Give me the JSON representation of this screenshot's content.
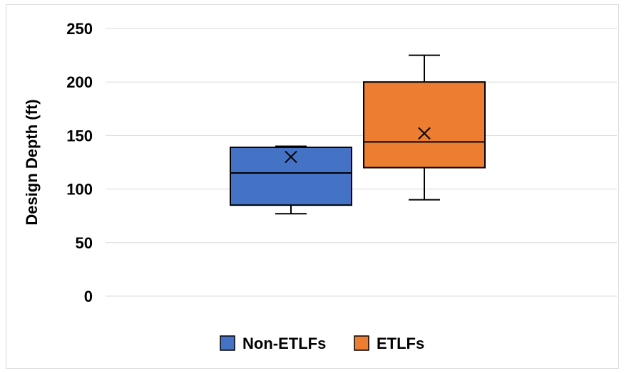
{
  "chart_data": {
    "type": "box",
    "title": "",
    "xlabel": "",
    "ylabel": "Design Depth (ft)",
    "ylim": [
      0,
      250
    ],
    "yticks": [
      0,
      50,
      100,
      150,
      200,
      250
    ],
    "grid": true,
    "legend_position": "bottom",
    "series": [
      {
        "name": "Non-ETLFs",
        "color": "#4472c4",
        "min": 77,
        "q1": 85,
        "median": 115,
        "q3": 139,
        "max": 140,
        "mean": 130
      },
      {
        "name": "ETLFs",
        "color": "#ed7d31",
        "min": 90,
        "q1": 120,
        "median": 144,
        "q3": 200,
        "max": 225,
        "mean": 152
      }
    ]
  }
}
